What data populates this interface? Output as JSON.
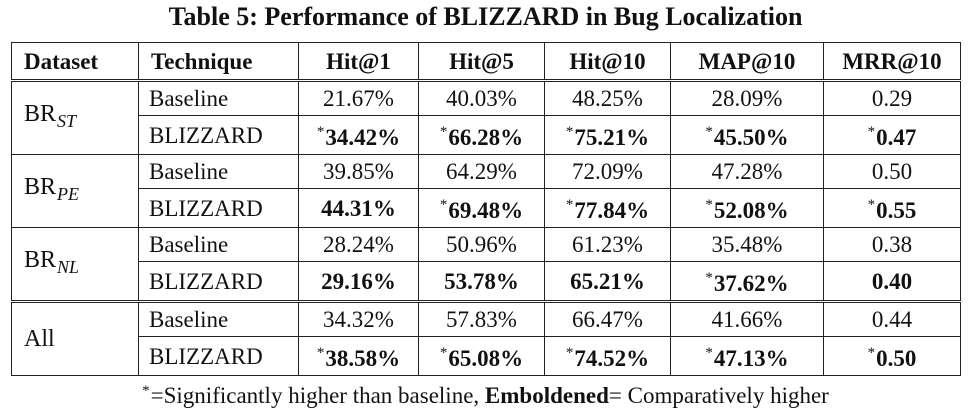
{
  "caption": "Table 5: Performance of BLIZZARD in Bug Localization",
  "headers": [
    "Dataset",
    "Technique",
    "Hit@1",
    "Hit@5",
    "Hit@10",
    "MAP@10",
    "MRR@10"
  ],
  "groups": [
    {
      "dataset_main": "BR",
      "dataset_sub": "ST",
      "rows": [
        {
          "technique": "Baseline",
          "cells": [
            {
              "v": "21.67%",
              "b": false,
              "s": false
            },
            {
              "v": "40.03%",
              "b": false,
              "s": false
            },
            {
              "v": "48.25%",
              "b": false,
              "s": false
            },
            {
              "v": "28.09%",
              "b": false,
              "s": false
            },
            {
              "v": "0.29",
              "b": false,
              "s": false
            }
          ]
        },
        {
          "technique": "BLIZZARD",
          "cells": [
            {
              "v": "34.42%",
              "b": true,
              "s": true
            },
            {
              "v": "66.28%",
              "b": true,
              "s": true
            },
            {
              "v": "75.21%",
              "b": true,
              "s": true
            },
            {
              "v": "45.50%",
              "b": true,
              "s": true
            },
            {
              "v": "0.47",
              "b": true,
              "s": true
            }
          ]
        }
      ]
    },
    {
      "dataset_main": "BR",
      "dataset_sub": "PE",
      "rows": [
        {
          "technique": "Baseline",
          "cells": [
            {
              "v": "39.85%",
              "b": false,
              "s": false
            },
            {
              "v": "64.29%",
              "b": false,
              "s": false
            },
            {
              "v": "72.09%",
              "b": false,
              "s": false
            },
            {
              "v": "47.28%",
              "b": false,
              "s": false
            },
            {
              "v": "0.50",
              "b": false,
              "s": false
            }
          ]
        },
        {
          "technique": "BLIZZARD",
          "cells": [
            {
              "v": "44.31%",
              "b": true,
              "s": false
            },
            {
              "v": "69.48%",
              "b": true,
              "s": true
            },
            {
              "v": "77.84%",
              "b": true,
              "s": true
            },
            {
              "v": "52.08%",
              "b": true,
              "s": true
            },
            {
              "v": "0.55",
              "b": true,
              "s": true
            }
          ]
        }
      ]
    },
    {
      "dataset_main": "BR",
      "dataset_sub": "NL",
      "rows": [
        {
          "technique": "Baseline",
          "cells": [
            {
              "v": "28.24%",
              "b": false,
              "s": false
            },
            {
              "v": "50.96%",
              "b": false,
              "s": false
            },
            {
              "v": "61.23%",
              "b": false,
              "s": false
            },
            {
              "v": "35.48%",
              "b": false,
              "s": false
            },
            {
              "v": "0.38",
              "b": false,
              "s": false
            }
          ]
        },
        {
          "technique": "BLIZZARD",
          "cells": [
            {
              "v": "29.16%",
              "b": true,
              "s": false
            },
            {
              "v": "53.78%",
              "b": true,
              "s": false
            },
            {
              "v": "65.21%",
              "b": true,
              "s": false
            },
            {
              "v": "37.62%",
              "b": true,
              "s": true
            },
            {
              "v": "0.40",
              "b": true,
              "s": false
            }
          ]
        }
      ]
    },
    {
      "dataset_main": "All",
      "dataset_sub": "",
      "rows": [
        {
          "technique": "Baseline",
          "cells": [
            {
              "v": "34.32%",
              "b": false,
              "s": false
            },
            {
              "v": "57.83%",
              "b": false,
              "s": false
            },
            {
              "v": "66.47%",
              "b": false,
              "s": false
            },
            {
              "v": "41.66%",
              "b": false,
              "s": false
            },
            {
              "v": "0.44",
              "b": false,
              "s": false
            }
          ]
        },
        {
          "technique": "BLIZZARD",
          "cells": [
            {
              "v": "38.58%",
              "b": true,
              "s": true
            },
            {
              "v": "65.08%",
              "b": true,
              "s": true
            },
            {
              "v": "74.52%",
              "b": true,
              "s": true
            },
            {
              "v": "47.13%",
              "b": true,
              "s": true
            },
            {
              "v": "0.50",
              "b": true,
              "s": true
            }
          ]
        }
      ]
    }
  ],
  "footnote": {
    "marker": "*",
    "text1": "=Significantly higher than baseline, ",
    "bold": "Emboldened",
    "text2": "= Comparatively higher"
  }
}
